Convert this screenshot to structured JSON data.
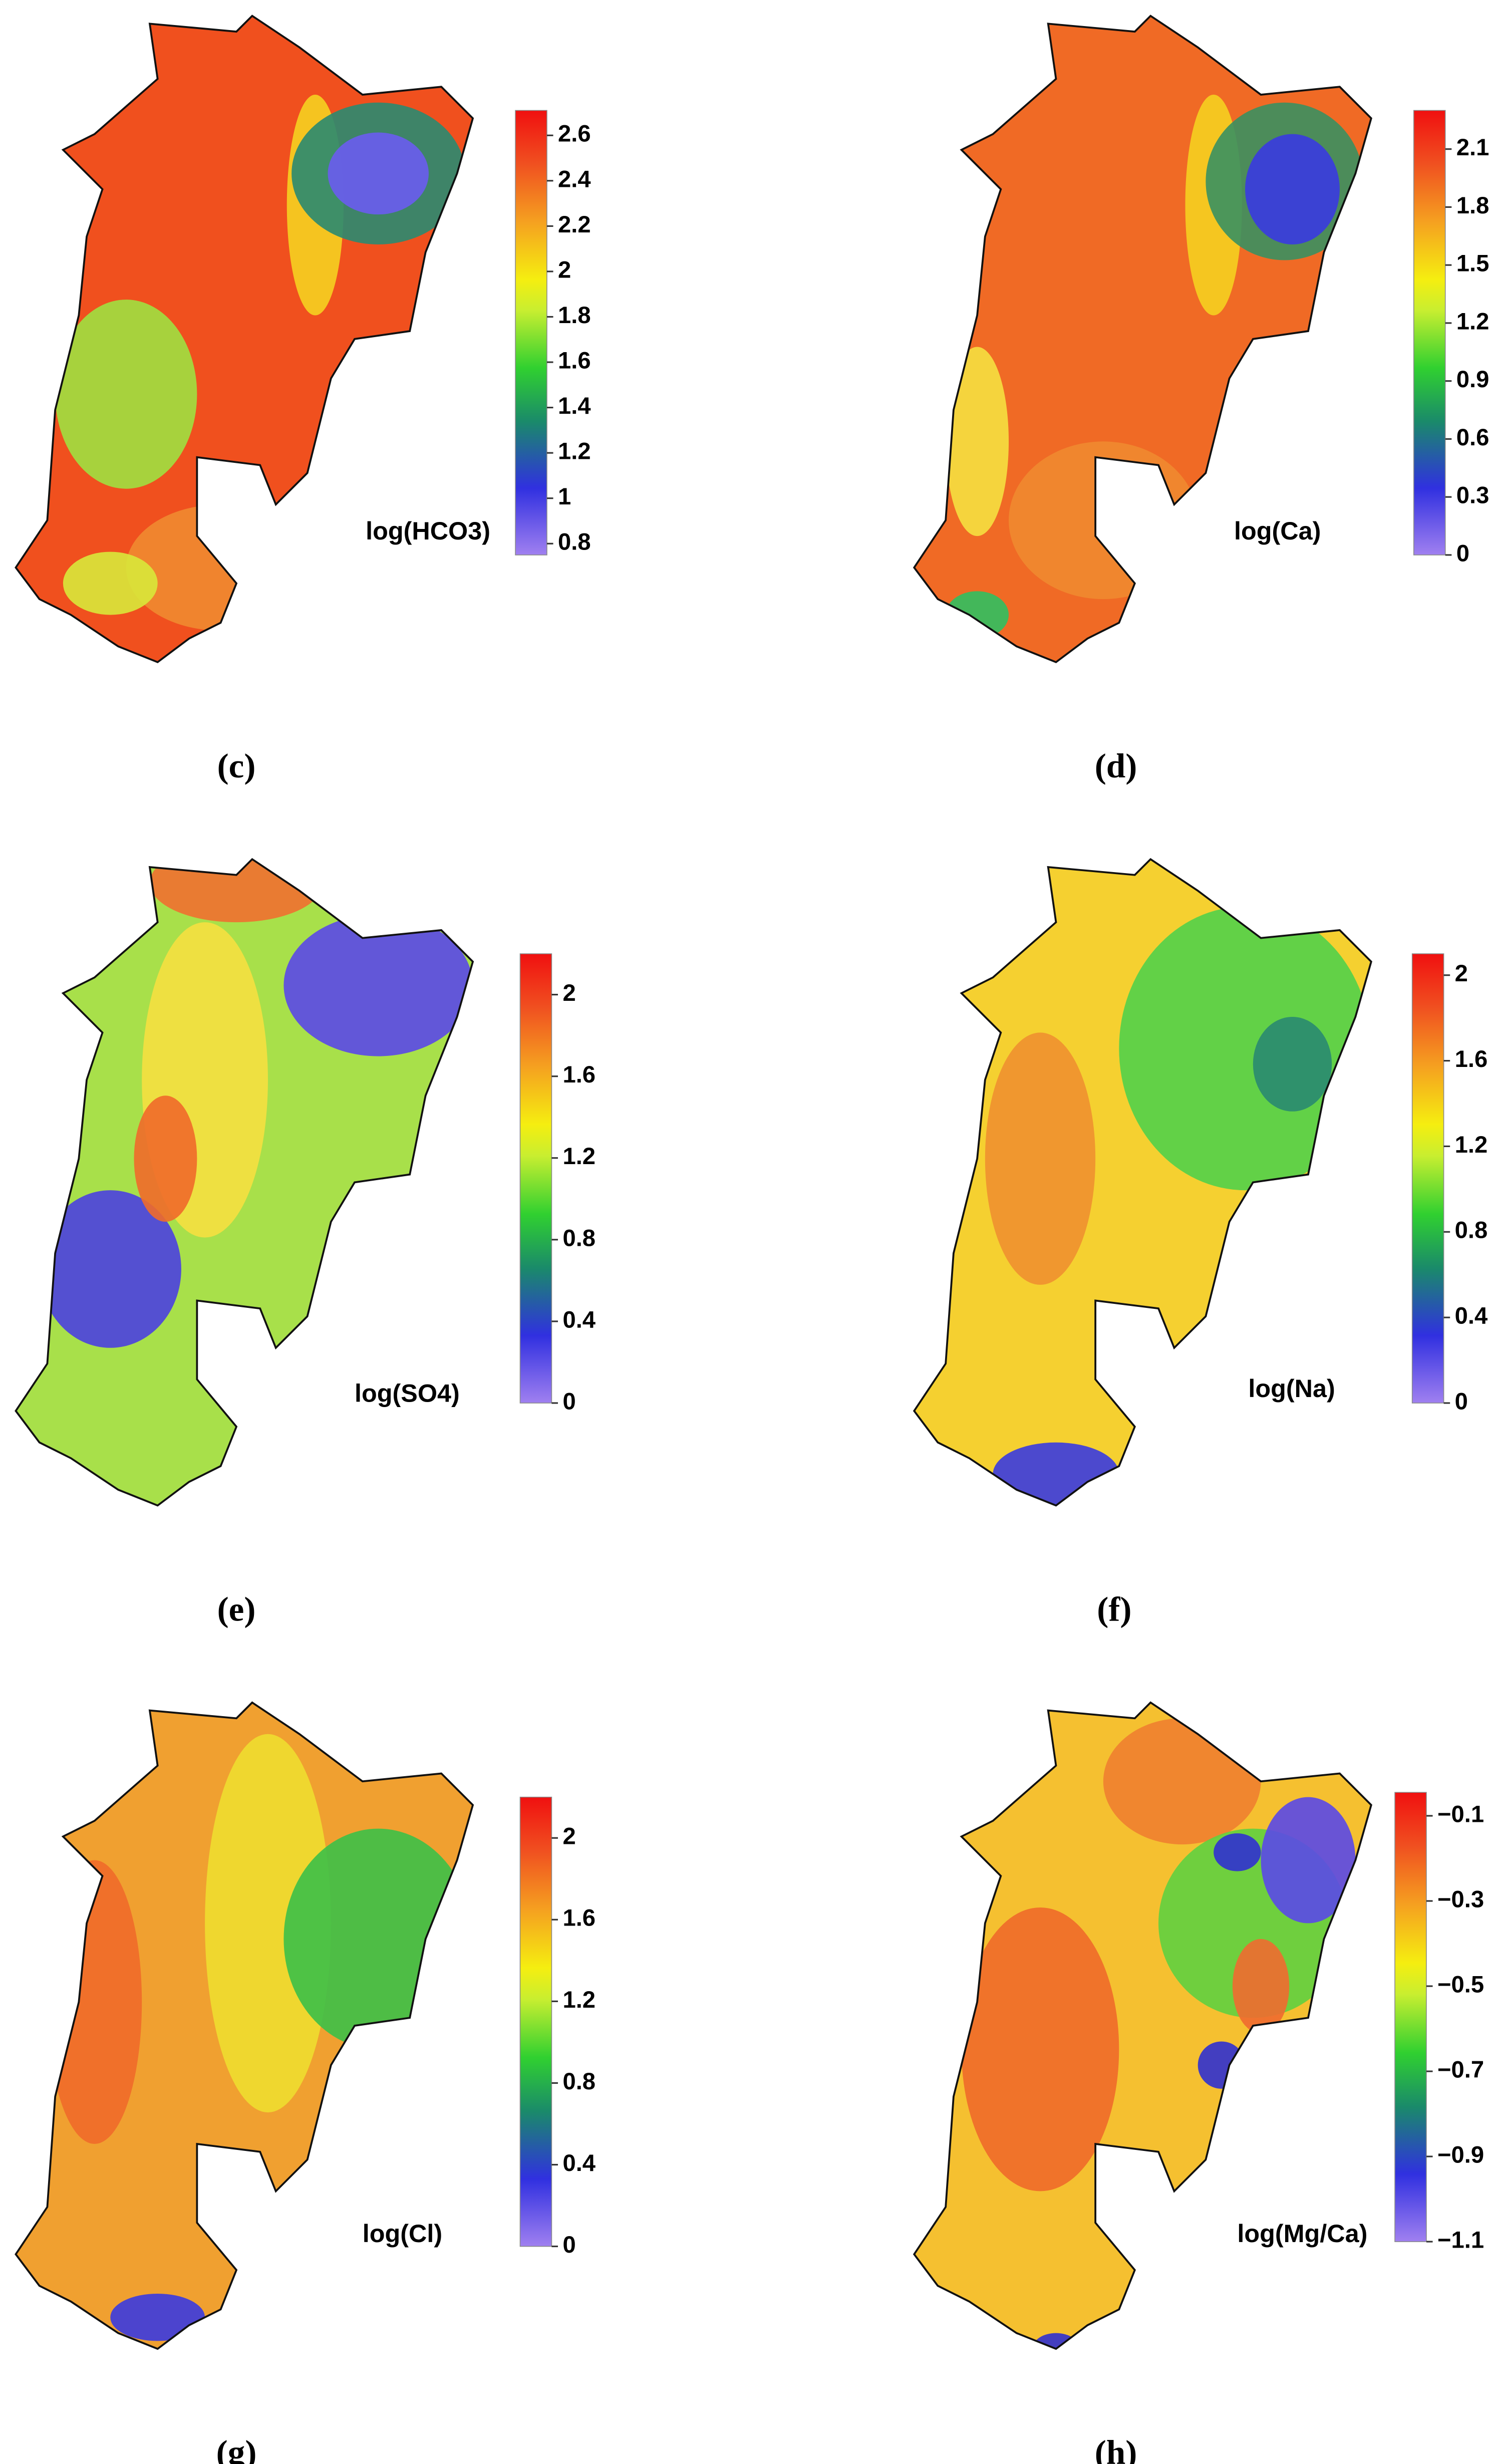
{
  "panels": [
    {
      "caption": "(c)",
      "label": "log(HCO3)",
      "colorbar": {
        "lim": [
          0.75,
          2.71
        ],
        "ticks": [
          0.8,
          1,
          1.2,
          1.4,
          1.6,
          1.8,
          2,
          2.2,
          2.4,
          2.6
        ]
      }
    },
    {
      "caption": "(d)",
      "label": "log(Ca)",
      "colorbar": {
        "lim": [
          0,
          2.3
        ],
        "ticks": [
          0,
          0.3,
          0.6,
          0.9,
          1.2,
          1.5,
          1.8,
          2.1
        ]
      }
    },
    {
      "caption": "(e)",
      "label": "log(SO4)",
      "colorbar": {
        "lim": [
          0,
          2.2
        ],
        "ticks": [
          0,
          0.4,
          0.8,
          1.2,
          1.6,
          2
        ]
      }
    },
    {
      "caption": "(f)",
      "label": "log(Na)",
      "colorbar": {
        "lim": [
          0,
          2.1
        ],
        "ticks": [
          0,
          0.4,
          0.8,
          1.2,
          1.6,
          2
        ]
      }
    },
    {
      "caption": "(g)",
      "label": "log(Cl)",
      "colorbar": {
        "lim": [
          0,
          2.2
        ],
        "ticks": [
          0,
          0.4,
          0.8,
          1.2,
          1.6,
          2
        ]
      }
    },
    {
      "caption": "(h)",
      "label": "log(Mg/Ca)",
      "colorbar": {
        "lim": [
          -1.1,
          -0.045
        ],
        "ticks": [
          {
            "value": -1.1,
            "label": "−1.1"
          },
          {
            "value": -0.9,
            "label": "−0.9"
          },
          {
            "value": -0.7,
            "label": "−0.7"
          },
          {
            "value": -0.5,
            "label": "−0.5"
          },
          {
            "value": -0.3,
            "label": "−0.3"
          },
          {
            "value": -0.1,
            "label": "−0.1"
          }
        ]
      }
    }
  ]
}
